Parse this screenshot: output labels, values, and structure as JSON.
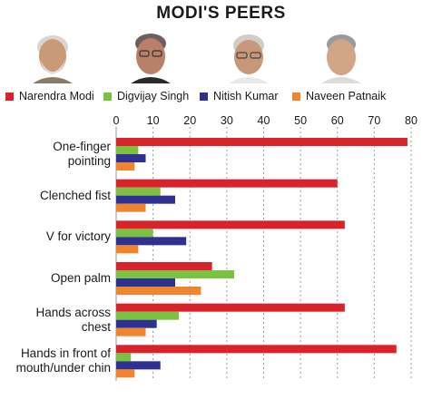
{
  "chart_data": {
    "type": "bar",
    "orientation": "horizontal",
    "title": "MODI'S PEERS",
    "categories": [
      "One-finger\npointing",
      "Clenched fist",
      "V for victory",
      "Open palm",
      "Hands across\nchest",
      "Hands in front of\nmouth/under chin"
    ],
    "series": [
      {
        "name": "Narendra Modi",
        "color": "#d9222a",
        "values": [
          79,
          60,
          62,
          26,
          62,
          76
        ]
      },
      {
        "name": "Digvijay Singh",
        "color": "#7cc242",
        "values": [
          6,
          12,
          10,
          32,
          17,
          4
        ]
      },
      {
        "name": "Nitish Kumar",
        "color": "#2e3192",
        "values": [
          8,
          16,
          19,
          16,
          11,
          12
        ]
      },
      {
        "name": "Naveen Patnaik",
        "color": "#f0852d",
        "values": [
          5,
          8,
          6,
          23,
          8,
          5
        ]
      }
    ],
    "xlim": [
      0,
      80
    ],
    "xticks": [
      "0",
      "10",
      "20",
      "30",
      "40",
      "50",
      "60",
      "70",
      "80"
    ],
    "grid": "dotted vertical",
    "legend_position": "top"
  },
  "portraits": [
    {
      "name": "Narendra Modi",
      "skin": "#c99a78",
      "hair": "#d8d6d2"
    },
    {
      "name": "Digvijay Singh",
      "skin": "#b88068",
      "hair": "#6a6060"
    },
    {
      "name": "Nitish Kumar",
      "skin": "#c7977a",
      "hair": "#d0ccc6"
    },
    {
      "name": "Naveen Patnaik",
      "skin": "#d2a488",
      "hair": "#9a9a9a"
    }
  ]
}
